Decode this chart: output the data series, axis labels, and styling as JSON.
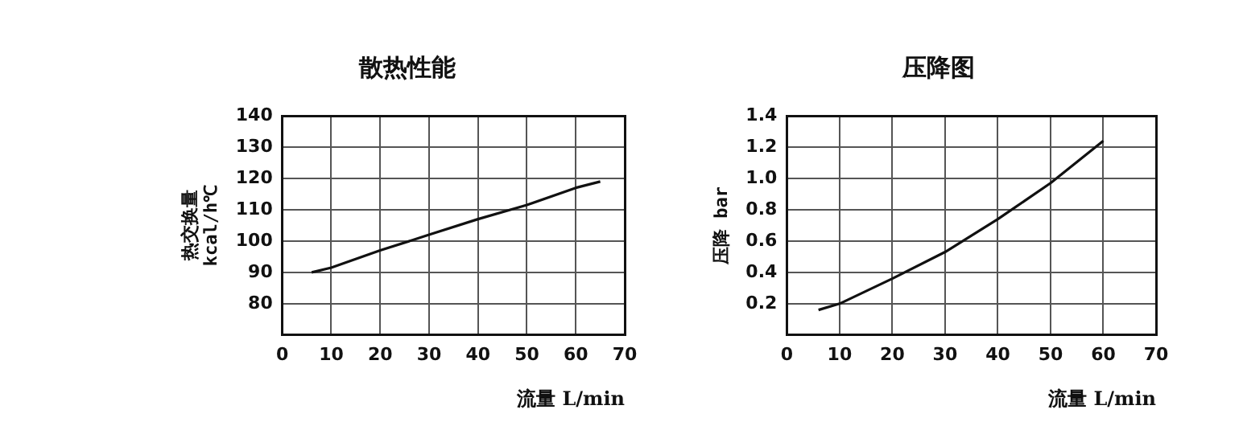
{
  "chart_data": [
    {
      "type": "line",
      "title": "散热性能",
      "xlabel": "流量 L/min",
      "ylabel": "热交换量\nkcal/h℃",
      "xlim": [
        0,
        70
      ],
      "xticks": [
        0,
        10,
        20,
        30,
        40,
        50,
        60,
        70
      ],
      "ylim": [
        70,
        140
      ],
      "yticks": [
        80,
        90,
        100,
        110,
        120,
        130,
        140
      ],
      "grid": true,
      "legend": false,
      "marker": "none",
      "line_style": "solid",
      "series": [
        {
          "color": "#111111",
          "x": [
            6,
            10,
            20,
            30,
            40,
            50,
            60,
            65
          ],
          "values": [
            90,
            91.5,
            97,
            102,
            107,
            111.5,
            117,
            119
          ]
        }
      ]
    },
    {
      "type": "line",
      "title": "压降图",
      "xlabel": "流量 L/min",
      "ylabel": "压降 bar",
      "xlim": [
        0,
        70
      ],
      "xticks": [
        0,
        10,
        20,
        30,
        40,
        50,
        60,
        70
      ],
      "ylim": [
        0,
        1.4
      ],
      "yticks": [
        0.2,
        0.4,
        0.6,
        0.8,
        {
          "value": 1.0,
          "label": "1.0"
        },
        1.2,
        1.4
      ],
      "grid": true,
      "legend": false,
      "marker": "none",
      "line_style": "solid",
      "series": [
        {
          "color": "#111111",
          "x": [
            6,
            10,
            20,
            30,
            40,
            50,
            60
          ],
          "values": [
            0.16,
            0.2,
            0.36,
            0.53,
            0.74,
            0.97,
            1.24
          ]
        }
      ]
    }
  ]
}
